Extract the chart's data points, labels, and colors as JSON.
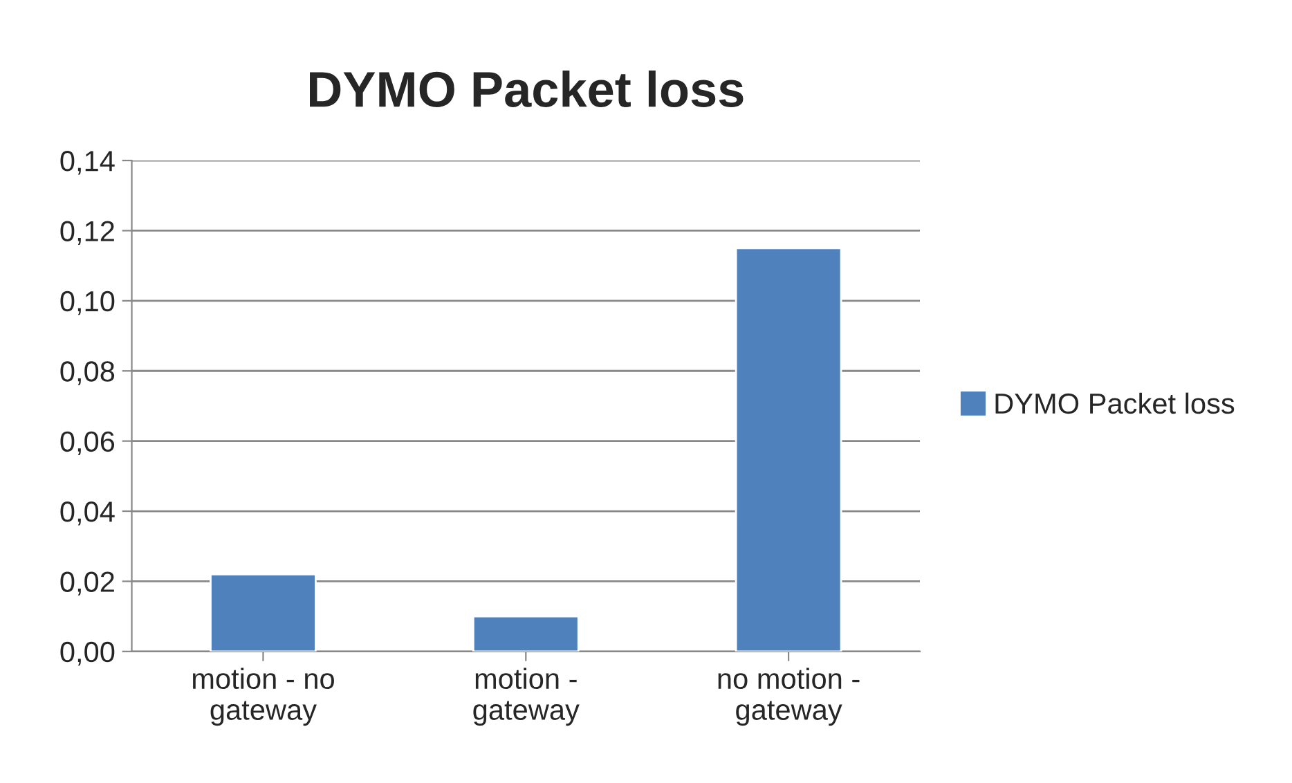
{
  "chart_data": {
    "type": "bar",
    "title": "DYMO Packet loss",
    "categories": [
      "motion - no\ngateway",
      "motion -\ngateway",
      "no motion -\ngateway"
    ],
    "series": [
      {
        "name": "DYMO Packet loss",
        "color": "#4f81bd",
        "values": [
          0.022,
          0.01,
          0.115
        ]
      }
    ],
    "ylim": [
      0,
      0.14
    ],
    "yticks": [
      {
        "value": 0,
        "label": "0,00"
      },
      {
        "value": 0.02,
        "label": "0,02"
      },
      {
        "value": 0.04,
        "label": "0,04"
      },
      {
        "value": 0.06,
        "label": "0,06"
      },
      {
        "value": 0.08,
        "label": "0,08"
      },
      {
        "value": 0.1,
        "label": "0,10"
      },
      {
        "value": 0.12,
        "label": "0,12"
      },
      {
        "value": 0.14,
        "label": "0,14"
      }
    ],
    "grid": "y",
    "legend": "right"
  }
}
